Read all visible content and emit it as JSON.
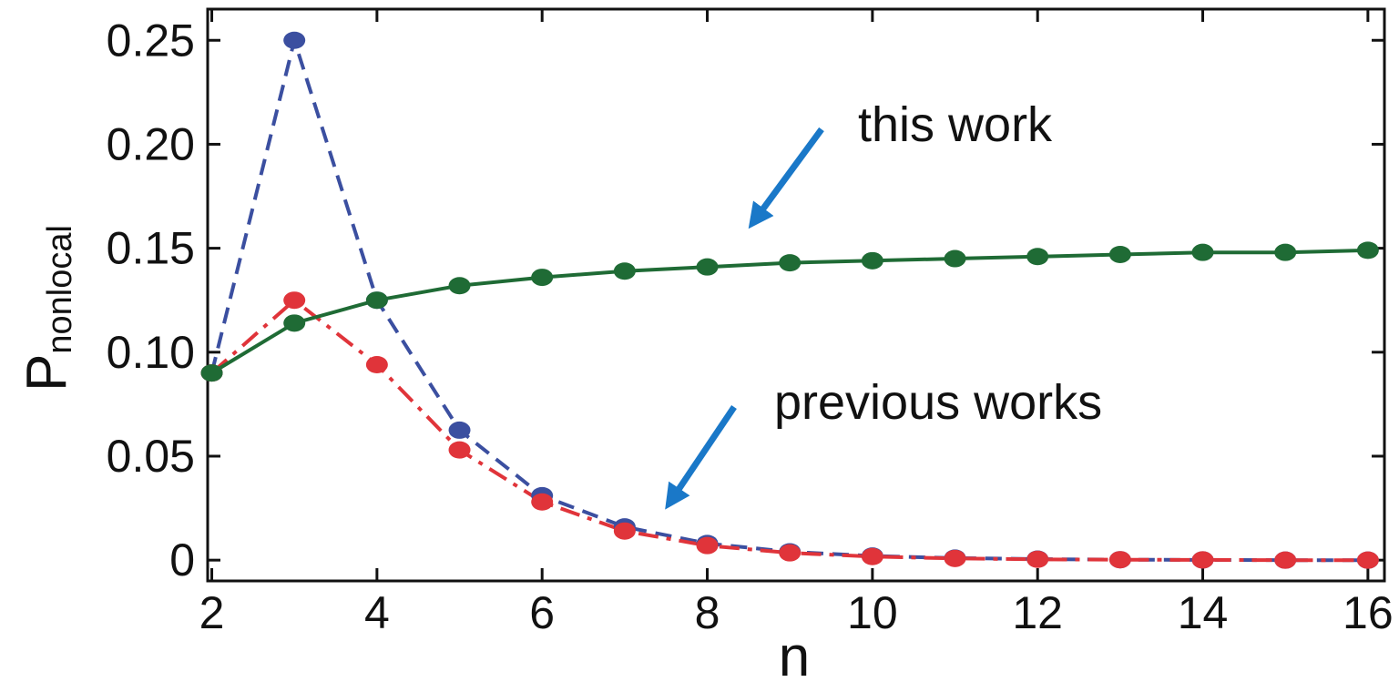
{
  "chart_data": {
    "type": "line",
    "xlabel": "n",
    "ylabel": {
      "main": "P",
      "subscript": "nonlocal"
    },
    "xlim": [
      1.95,
      16.2
    ],
    "ylim": [
      -0.01,
      0.265
    ],
    "xticks": [
      2,
      4,
      6,
      8,
      10,
      12,
      14,
      16
    ],
    "xtick_labels": [
      "2",
      "4",
      "6",
      "8",
      "10",
      "12",
      "14",
      "16"
    ],
    "yticks": [
      0,
      0.05,
      0.1,
      0.15,
      0.2,
      0.25
    ],
    "ytick_labels": [
      "0",
      "0.05",
      "0.10",
      "0.15",
      "0.20",
      "0.25"
    ],
    "grid": false,
    "legend": "none",
    "series": [
      {
        "color": "#1f6b35",
        "line_style": "solid",
        "x": [
          2,
          3,
          4,
          5,
          6,
          7,
          8,
          9,
          10,
          11,
          12,
          13,
          14,
          15,
          16
        ],
        "y": [
          0.09,
          0.114,
          0.125,
          0.132,
          0.136,
          0.139,
          0.141,
          0.143,
          0.144,
          0.145,
          0.146,
          0.147,
          0.148,
          0.148,
          0.149
        ]
      },
      {
        "color": "#3b4fa0",
        "line_style": "dashed",
        "x": [
          2,
          3,
          4,
          5,
          6,
          7,
          8,
          9,
          10,
          11,
          12,
          13,
          14,
          15,
          16
        ],
        "y": [
          0.09,
          0.25,
          0.125,
          0.0625,
          0.031,
          0.016,
          0.008,
          0.004,
          0.002,
          0.001,
          0.0005,
          0.0002,
          0.0001,
          0.0,
          0.0
        ]
      },
      {
        "color": "#e0343a",
        "line_style": "dash-dot",
        "x": [
          2,
          3,
          4,
          5,
          6,
          7,
          8,
          9,
          10,
          11,
          12,
          13,
          14,
          15,
          16
        ],
        "y": [
          0.09,
          0.125,
          0.094,
          0.053,
          0.028,
          0.014,
          0.007,
          0.0035,
          0.0017,
          0.0008,
          0.0004,
          0.0002,
          0.0001,
          0.0,
          0.0
        ]
      }
    ],
    "annotations": [
      {
        "text": "this work",
        "target_series": 0,
        "arrow_color": "#1a78c8"
      },
      {
        "text": "previous works",
        "target_series": 2,
        "arrow_color": "#1a78c8"
      }
    ]
  }
}
